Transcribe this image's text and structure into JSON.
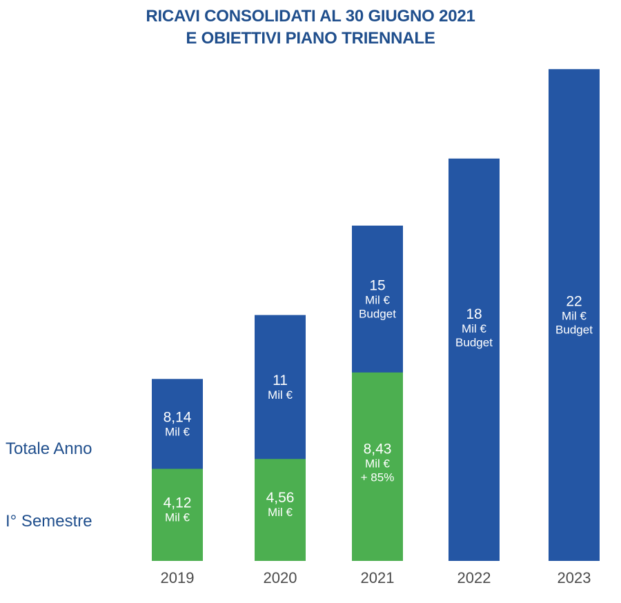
{
  "chart_data": {
    "type": "bar",
    "title_line1": "RICAVI CONSOLIDATI AL 30 GIUGNO 2021",
    "title_line2": "E OBIETTIVI PIANO TRIENNALE",
    "row_labels": {
      "total": "Totale Anno",
      "semester": "I° Semestre"
    },
    "categories": [
      "2019",
      "2020",
      "2021",
      "2022",
      "2023"
    ],
    "series": [
      {
        "name": "Totale Anno",
        "values": [
          8.14,
          11,
          15,
          18,
          22
        ],
        "color": "#2456a4"
      },
      {
        "name": "I° Semestre",
        "values": [
          4.12,
          4.56,
          8.43,
          null,
          null
        ],
        "color": "#4caf50"
      }
    ],
    "total_labels": [
      [
        "8,14",
        "Mil €"
      ],
      [
        "11",
        "Mil €"
      ],
      [
        "15",
        "Mil €",
        "Budget"
      ],
      [
        "18",
        "Mil €",
        "Budget"
      ],
      [
        "22",
        "Mil €",
        "Budget"
      ]
    ],
    "semester_labels": [
      [
        "4,12",
        "Mil €"
      ],
      [
        "4,56",
        "Mil €"
      ],
      [
        "8,43",
        "Mil €",
        "+ 85%"
      ],
      null,
      null
    ],
    "colors": {
      "title": "#1f4e8c",
      "axis_text": "#4a4a4a",
      "bar_text": "#ffffff"
    }
  }
}
